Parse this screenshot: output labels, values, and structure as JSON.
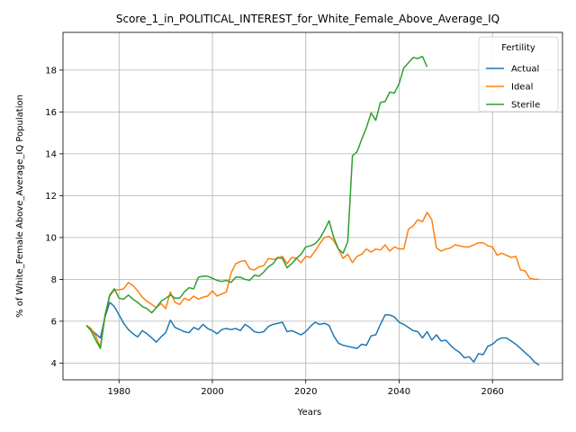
{
  "chart_data": {
    "type": "line",
    "title": "Score_1_in_POLITICAL_INTEREST_for_White_Female_Above_Average_IQ",
    "xlabel": "Years",
    "ylabel": "% of White_Female Above_Average_IQ Population",
    "xlim": [
      1968,
      2075
    ],
    "ylim": [
      3.2,
      19.8
    ],
    "xticks": [
      1980,
      2000,
      2020,
      2040,
      2060
    ],
    "yticks": [
      4,
      6,
      8,
      10,
      12,
      14,
      16,
      18
    ],
    "grid": true,
    "legend": {
      "title": "Fertility",
      "position": "top-right"
    },
    "series": [
      {
        "name": "Actual",
        "color": "#1f77b4",
        "points": [
          [
            1973,
            5.8
          ],
          [
            1974,
            5.6
          ],
          [
            1975,
            5.4
          ],
          [
            1976,
            5.2
          ],
          [
            1977,
            6.2
          ],
          [
            1978,
            6.9
          ],
          [
            1979,
            6.7
          ],
          [
            1980,
            6.3
          ],
          [
            1981,
            5.9
          ],
          [
            1982,
            5.6
          ],
          [
            1983,
            5.4
          ],
          [
            1984,
            5.25
          ],
          [
            1985,
            5.55
          ],
          [
            1986,
            5.4
          ],
          [
            1987,
            5.2
          ],
          [
            1988,
            5.0
          ],
          [
            1989,
            5.25
          ],
          [
            1990,
            5.45
          ],
          [
            1991,
            6.05
          ],
          [
            1992,
            5.7
          ],
          [
            1993,
            5.6
          ],
          [
            1994,
            5.5
          ],
          [
            1995,
            5.45
          ],
          [
            1996,
            5.7
          ],
          [
            1997,
            5.6
          ],
          [
            1998,
            5.85
          ],
          [
            1999,
            5.65
          ],
          [
            2000,
            5.55
          ],
          [
            2001,
            5.4
          ],
          [
            2002,
            5.6
          ],
          [
            2003,
            5.65
          ],
          [
            2004,
            5.6
          ],
          [
            2005,
            5.65
          ],
          [
            2006,
            5.55
          ],
          [
            2007,
            5.85
          ],
          [
            2008,
            5.7
          ],
          [
            2009,
            5.5
          ],
          [
            2010,
            5.45
          ],
          [
            2011,
            5.5
          ],
          [
            2012,
            5.75
          ],
          [
            2013,
            5.85
          ],
          [
            2014,
            5.9
          ],
          [
            2015,
            5.95
          ],
          [
            2016,
            5.5
          ],
          [
            2017,
            5.55
          ],
          [
            2018,
            5.45
          ],
          [
            2019,
            5.35
          ],
          [
            2020,
            5.5
          ],
          [
            2021,
            5.75
          ],
          [
            2022,
            5.95
          ],
          [
            2023,
            5.85
          ],
          [
            2024,
            5.9
          ],
          [
            2025,
            5.8
          ],
          [
            2026,
            5.3
          ],
          [
            2027,
            4.95
          ],
          [
            2028,
            4.85
          ],
          [
            2029,
            4.8
          ],
          [
            2030,
            4.75
          ],
          [
            2031,
            4.7
          ],
          [
            2032,
            4.9
          ],
          [
            2033,
            4.85
          ],
          [
            2034,
            5.3
          ],
          [
            2035,
            5.35
          ],
          [
            2036,
            5.85
          ],
          [
            2037,
            6.3
          ],
          [
            2038,
            6.3
          ],
          [
            2039,
            6.2
          ],
          [
            2040,
            5.95
          ],
          [
            2041,
            5.85
          ],
          [
            2042,
            5.7
          ],
          [
            2043,
            5.55
          ],
          [
            2044,
            5.5
          ],
          [
            2045,
            5.2
          ],
          [
            2046,
            5.5
          ],
          [
            2047,
            5.1
          ],
          [
            2048,
            5.35
          ],
          [
            2049,
            5.05
          ],
          [
            2050,
            5.1
          ],
          [
            2051,
            4.85
          ],
          [
            2052,
            4.65
          ],
          [
            2053,
            4.5
          ],
          [
            2054,
            4.25
          ],
          [
            2055,
            4.3
          ],
          [
            2056,
            4.05
          ],
          [
            2057,
            4.45
          ],
          [
            2058,
            4.4
          ],
          [
            2059,
            4.8
          ],
          [
            2060,
            4.9
          ],
          [
            2061,
            5.1
          ],
          [
            2062,
            5.2
          ],
          [
            2063,
            5.2
          ],
          [
            2064,
            5.05
          ],
          [
            2065,
            4.9
          ],
          [
            2066,
            4.7
          ],
          [
            2067,
            4.5
          ],
          [
            2068,
            4.3
          ],
          [
            2069,
            4.05
          ],
          [
            2070,
            3.9
          ]
        ]
      },
      {
        "name": "Ideal",
        "color": "#ff7f0e",
        "points": [
          [
            1973,
            5.8
          ],
          [
            1974,
            5.65
          ],
          [
            1975,
            5.3
          ],
          [
            1976,
            4.75
          ],
          [
            1977,
            6.3
          ],
          [
            1978,
            7.2
          ],
          [
            1979,
            7.5
          ],
          [
            1980,
            7.5
          ],
          [
            1981,
            7.55
          ],
          [
            1982,
            7.85
          ],
          [
            1983,
            7.7
          ],
          [
            1984,
            7.45
          ],
          [
            1985,
            7.15
          ],
          [
            1986,
            6.95
          ],
          [
            1987,
            6.8
          ],
          [
            1988,
            6.65
          ],
          [
            1989,
            6.85
          ],
          [
            1990,
            6.6
          ],
          [
            1991,
            7.4
          ],
          [
            1992,
            6.9
          ],
          [
            1993,
            6.8
          ],
          [
            1994,
            7.1
          ],
          [
            1995,
            7.0
          ],
          [
            1996,
            7.2
          ],
          [
            1997,
            7.05
          ],
          [
            1998,
            7.15
          ],
          [
            1999,
            7.2
          ],
          [
            2000,
            7.45
          ],
          [
            2001,
            7.2
          ],
          [
            2002,
            7.3
          ],
          [
            2003,
            7.4
          ],
          [
            2004,
            8.3
          ],
          [
            2005,
            8.75
          ],
          [
            2006,
            8.85
          ],
          [
            2007,
            8.9
          ],
          [
            2008,
            8.5
          ],
          [
            2009,
            8.45
          ],
          [
            2010,
            8.6
          ],
          [
            2011,
            8.65
          ],
          [
            2012,
            9.0
          ],
          [
            2013,
            8.95
          ],
          [
            2014,
            9.0
          ],
          [
            2015,
            9.1
          ],
          [
            2016,
            8.75
          ],
          [
            2017,
            9.05
          ],
          [
            2018,
            9.0
          ],
          [
            2019,
            8.8
          ],
          [
            2020,
            9.1
          ],
          [
            2021,
            9.05
          ],
          [
            2022,
            9.35
          ],
          [
            2023,
            9.7
          ],
          [
            2024,
            10.0
          ],
          [
            2025,
            10.05
          ],
          [
            2026,
            9.85
          ],
          [
            2027,
            9.45
          ],
          [
            2028,
            9.0
          ],
          [
            2029,
            9.2
          ],
          [
            2030,
            8.8
          ],
          [
            2031,
            9.1
          ],
          [
            2032,
            9.2
          ],
          [
            2033,
            9.45
          ],
          [
            2034,
            9.3
          ],
          [
            2035,
            9.45
          ],
          [
            2036,
            9.4
          ],
          [
            2037,
            9.65
          ],
          [
            2038,
            9.35
          ],
          [
            2039,
            9.55
          ],
          [
            2040,
            9.45
          ],
          [
            2041,
            9.45
          ],
          [
            2042,
            10.4
          ],
          [
            2043,
            10.55
          ],
          [
            2044,
            10.85
          ],
          [
            2045,
            10.75
          ],
          [
            2046,
            11.2
          ],
          [
            2047,
            10.85
          ],
          [
            2048,
            9.5
          ],
          [
            2049,
            9.35
          ],
          [
            2050,
            9.45
          ],
          [
            2051,
            9.5
          ],
          [
            2052,
            9.65
          ],
          [
            2053,
            9.6
          ],
          [
            2054,
            9.55
          ],
          [
            2055,
            9.55
          ],
          [
            2056,
            9.65
          ],
          [
            2057,
            9.75
          ],
          [
            2058,
            9.75
          ],
          [
            2059,
            9.6
          ],
          [
            2060,
            9.55
          ],
          [
            2061,
            9.15
          ],
          [
            2062,
            9.25
          ],
          [
            2063,
            9.15
          ],
          [
            2064,
            9.05
          ],
          [
            2065,
            9.1
          ],
          [
            2066,
            8.45
          ],
          [
            2067,
            8.4
          ],
          [
            2068,
            8.05
          ],
          [
            2069,
            8.0
          ],
          [
            2070,
            8.0
          ]
        ]
      },
      {
        "name": "Sterile",
        "color": "#2ca02c",
        "points": [
          [
            1973,
            5.8
          ],
          [
            1974,
            5.55
          ],
          [
            1975,
            5.1
          ],
          [
            1976,
            4.7
          ],
          [
            1977,
            6.25
          ],
          [
            1978,
            7.25
          ],
          [
            1979,
            7.55
          ],
          [
            1980,
            7.1
          ],
          [
            1981,
            7.05
          ],
          [
            1982,
            7.25
          ],
          [
            1983,
            7.05
          ],
          [
            1984,
            6.9
          ],
          [
            1985,
            6.7
          ],
          [
            1986,
            6.6
          ],
          [
            1987,
            6.4
          ],
          [
            1988,
            6.65
          ],
          [
            1989,
            6.95
          ],
          [
            1990,
            7.1
          ],
          [
            1991,
            7.25
          ],
          [
            1992,
            7.1
          ],
          [
            1993,
            7.1
          ],
          [
            1994,
            7.4
          ],
          [
            1995,
            7.6
          ],
          [
            1996,
            7.55
          ],
          [
            1997,
            8.1
          ],
          [
            1998,
            8.15
          ],
          [
            1999,
            8.15
          ],
          [
            2000,
            8.05
          ],
          [
            2001,
            7.95
          ],
          [
            2002,
            7.9
          ],
          [
            2003,
            7.95
          ],
          [
            2004,
            7.85
          ],
          [
            2005,
            8.1
          ],
          [
            2006,
            8.1
          ],
          [
            2007,
            8.0
          ],
          [
            2008,
            7.95
          ],
          [
            2009,
            8.2
          ],
          [
            2010,
            8.15
          ],
          [
            2011,
            8.35
          ],
          [
            2012,
            8.6
          ],
          [
            2013,
            8.75
          ],
          [
            2014,
            9.05
          ],
          [
            2015,
            9.0
          ],
          [
            2016,
            8.55
          ],
          [
            2017,
            8.75
          ],
          [
            2018,
            9.0
          ],
          [
            2019,
            9.2
          ],
          [
            2020,
            9.55
          ],
          [
            2021,
            9.6
          ],
          [
            2022,
            9.7
          ],
          [
            2023,
            9.95
          ],
          [
            2024,
            10.35
          ],
          [
            2025,
            10.8
          ],
          [
            2026,
            10.0
          ],
          [
            2027,
            9.45
          ],
          [
            2028,
            9.25
          ],
          [
            2029,
            9.8
          ],
          [
            2030,
            13.9
          ],
          [
            2031,
            14.1
          ],
          [
            2032,
            14.7
          ],
          [
            2033,
            15.25
          ],
          [
            2034,
            15.95
          ],
          [
            2035,
            15.6
          ],
          [
            2036,
            16.45
          ],
          [
            2037,
            16.5
          ],
          [
            2038,
            16.95
          ],
          [
            2039,
            16.9
          ],
          [
            2040,
            17.35
          ],
          [
            2041,
            18.1
          ],
          [
            2042,
            18.35
          ],
          [
            2043,
            18.6
          ],
          [
            2044,
            18.55
          ],
          [
            2045,
            18.65
          ],
          [
            2046,
            18.15
          ]
        ]
      }
    ]
  }
}
